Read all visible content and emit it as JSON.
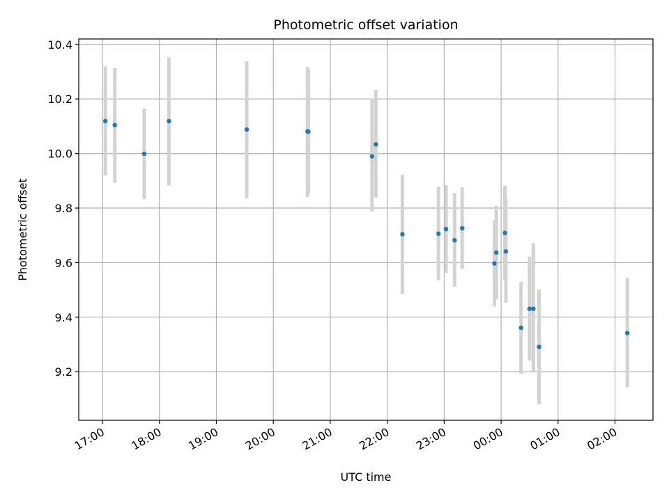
{
  "chart_data": {
    "type": "scatter",
    "title": "Photometric offset variation",
    "xlabel": "UTC time",
    "ylabel": "Photometric offset",
    "x_axis": "time",
    "x_range": [
      "16:35",
      "26:40"
    ],
    "ylim": [
      9.022,
      10.42
    ],
    "grid": true,
    "x_ticks": [
      "17:00",
      "18:00",
      "19:00",
      "20:00",
      "21:00",
      "22:00",
      "23:00",
      "00:00",
      "01:00",
      "02:00"
    ],
    "y_ticks": [
      "9.2",
      "9.4",
      "9.6",
      "9.8",
      "10.0",
      "10.2",
      "10.4"
    ],
    "marker_color": "#1f77b4",
    "errorbar_color": "#d3d3d3",
    "points": [
      {
        "t": "17:03",
        "y": 10.119,
        "lo": 9.919,
        "hi": 10.32
      },
      {
        "t": "17:13",
        "y": 10.104,
        "lo": 9.893,
        "hi": 10.314
      },
      {
        "t": "17:44",
        "y": 9.999,
        "lo": 9.833,
        "hi": 10.165
      },
      {
        "t": "18:10",
        "y": 10.119,
        "lo": 9.883,
        "hi": 10.353
      },
      {
        "t": "19:32",
        "y": 10.088,
        "lo": 9.836,
        "hi": 10.338
      },
      {
        "t": "20:36",
        "y": 10.081,
        "lo": 9.841,
        "hi": 10.317
      },
      {
        "t": "20:37",
        "y": 10.08,
        "lo": 9.853,
        "hi": 10.305
      },
      {
        "t": "21:44",
        "y": 9.99,
        "lo": 9.788,
        "hi": 10.201
      },
      {
        "t": "21:48",
        "y": 10.034,
        "lo": 9.838,
        "hi": 10.233
      },
      {
        "t": "22:16",
        "y": 9.704,
        "lo": 9.485,
        "hi": 9.922
      },
      {
        "t": "22:54",
        "y": 9.706,
        "lo": 9.535,
        "hi": 9.878
      },
      {
        "t": "23:02",
        "y": 9.723,
        "lo": 9.563,
        "hi": 9.884
      },
      {
        "t": "23:11",
        "y": 9.682,
        "lo": 9.512,
        "hi": 9.855
      },
      {
        "t": "23:19",
        "y": 9.726,
        "lo": 9.577,
        "hi": 9.876
      },
      {
        "t": "23:53",
        "y": 9.597,
        "lo": 9.439,
        "hi": 9.755
      },
      {
        "t": "23:55",
        "y": 9.637,
        "lo": 9.466,
        "hi": 9.809
      },
      {
        "t": "24:04",
        "y": 9.709,
        "lo": 9.536,
        "hi": 9.882
      },
      {
        "t": "24:05",
        "y": 9.641,
        "lo": 9.453,
        "hi": 9.833
      },
      {
        "t": "24:21",
        "y": 9.361,
        "lo": 9.192,
        "hi": 9.53
      },
      {
        "t": "24:30",
        "y": 9.431,
        "lo": 9.24,
        "hi": 9.622
      },
      {
        "t": "24:34",
        "y": 9.431,
        "lo": 9.197,
        "hi": 9.671
      },
      {
        "t": "24:40",
        "y": 9.291,
        "lo": 9.08,
        "hi": 9.502
      },
      {
        "t": "26:13",
        "y": 9.342,
        "lo": 9.143,
        "hi": 9.545
      }
    ]
  }
}
